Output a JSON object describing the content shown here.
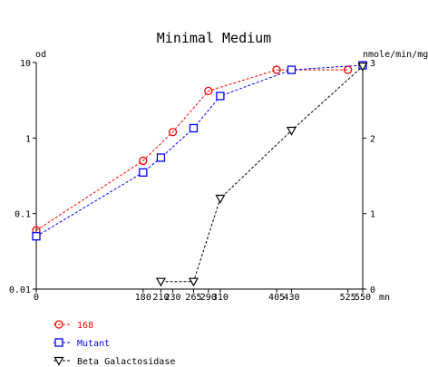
{
  "chart_data": {
    "type": "line",
    "title": "Minimal Medium",
    "left_axis_label": "od",
    "right_axis_label": "nmole/min/mg",
    "x_unit_label": "mn",
    "x_ticks": [
      0,
      180,
      210,
      230,
      265,
      290,
      310,
      405,
      430,
      525,
      550
    ],
    "left_ticks": [
      {
        "value": 0.01,
        "label": "0.01"
      },
      {
        "value": 0.1,
        "label": "0.1"
      },
      {
        "value": 1,
        "label": "1"
      },
      {
        "value": 10,
        "label": "10"
      }
    ],
    "right_ticks": [
      {
        "value": 0,
        "label": "0"
      },
      {
        "value": 1,
        "label": "1"
      },
      {
        "value": 2,
        "label": "2"
      },
      {
        "value": 3,
        "label": "3"
      }
    ],
    "xlim": [
      0,
      550
    ],
    "ylim_left": [
      0.01,
      10
    ],
    "ylim_right": [
      0,
      3
    ],
    "left_scale": "log",
    "legend_position": "bottom-left",
    "series": [
      {
        "name": "168",
        "axis": "left",
        "marker": "circle",
        "color": "#ff0000",
        "x": [
          0,
          180,
          230,
          290,
          405,
          525
        ],
        "values": [
          0.06,
          0.5,
          1.2,
          4.2,
          8.0,
          8.0
        ]
      },
      {
        "name": "Mutant",
        "axis": "left",
        "marker": "square",
        "color": "#0000ff",
        "x": [
          0,
          180,
          210,
          265,
          310,
          430,
          550
        ],
        "values": [
          0.05,
          0.35,
          0.55,
          1.35,
          3.6,
          8.0,
          9.2
        ]
      },
      {
        "name": "Beta Galactosidase",
        "axis": "right",
        "marker": "triangle-down",
        "color": "#000000",
        "x": [
          210,
          265,
          310,
          430,
          550
        ],
        "values": [
          0.1,
          0.1,
          1.2,
          2.1,
          2.95
        ]
      }
    ]
  }
}
